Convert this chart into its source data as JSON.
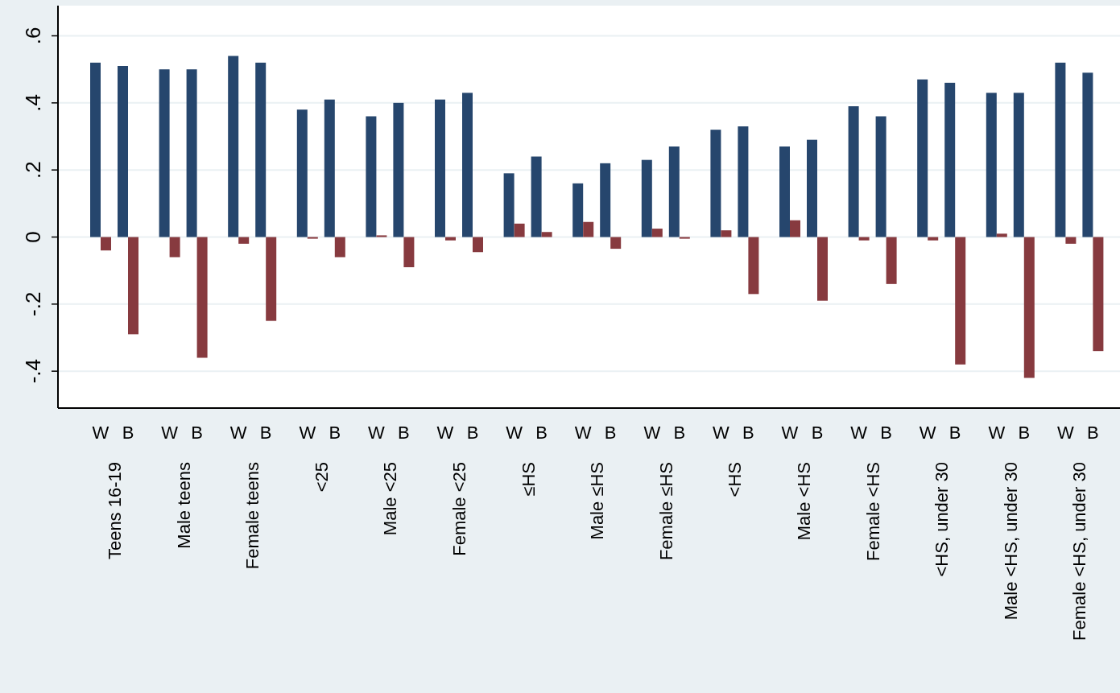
{
  "chart_data": {
    "type": "bar",
    "categories": [
      "W",
      "B",
      "W",
      "B",
      "W",
      "B",
      "W",
      "B",
      "W",
      "B",
      "W",
      "B",
      "W",
      "B",
      "W",
      "B",
      "W",
      "B",
      "W",
      "B",
      "W",
      "B",
      "W",
      "B",
      "W",
      "B",
      "W",
      "B",
      "W",
      "B"
    ],
    "series": [
      {
        "color": "#26466d",
        "values": [
          0.52,
          0.51,
          0.5,
          0.5,
          0.54,
          0.52,
          0.38,
          0.41,
          0.36,
          0.4,
          0.41,
          0.43,
          0.19,
          0.24,
          0.16,
          0.22,
          0.23,
          0.27,
          0.32,
          0.33,
          0.27,
          0.29,
          0.39,
          0.36,
          0.47,
          0.46,
          0.43,
          0.43,
          0.52,
          0.49
        ]
      },
      {
        "color": "#873a3f",
        "values": [
          -0.04,
          -0.29,
          -0.06,
          -0.36,
          -0.02,
          -0.25,
          -0.005,
          -0.06,
          0.005,
          -0.09,
          -0.01,
          -0.045,
          0.04,
          0.015,
          0.045,
          -0.035,
          0.025,
          -0.005,
          0.02,
          -0.17,
          0.05,
          -0.19,
          -0.01,
          -0.14,
          -0.01,
          -0.38,
          0.01,
          -0.42,
          -0.02,
          -0.34
        ]
      }
    ],
    "annotations": [
      "Teens 16-19",
      "Male teens",
      "Female teens",
      "<25",
      "Male <25",
      "Female <25",
      "≤HS",
      "Male ≤HS",
      "Female ≤HS",
      "<HS",
      "Male <HS",
      "Female <HS",
      "<HS, under 30",
      "Male <HS, under 30",
      "Female <HS, under 30"
    ],
    "ylim": [
      -0.51,
      0.69
    ],
    "yticks": [
      {
        "value": -0.4,
        "label": "-.4"
      },
      {
        "value": -0.2,
        "label": "-.2"
      },
      {
        "value": 0,
        "label": "0"
      },
      {
        "value": 0.2,
        "label": ".2"
      },
      {
        "value": 0.4,
        "label": ".4"
      },
      {
        "value": 0.6,
        "label": ".6"
      }
    ],
    "grid": "y"
  }
}
